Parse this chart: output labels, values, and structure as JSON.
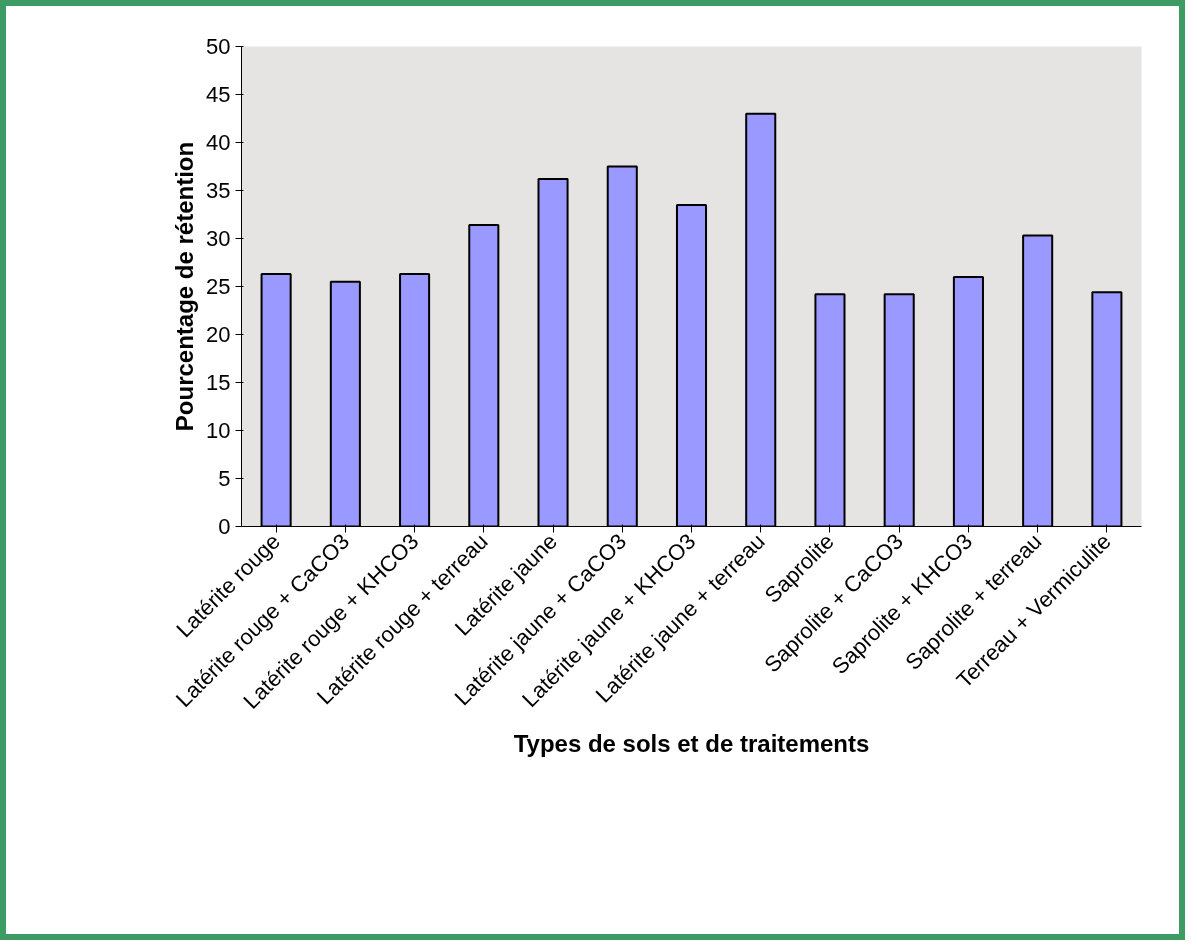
{
  "chart_data": {
    "type": "bar",
    "xlabel": "Types de sols et de traitements",
    "ylabel": "Pourcentage de rétention",
    "categories": [
      "Latérite rouge",
      "Latérite rouge + CaCO3",
      "Latérite rouge + KHCO3",
      "Latérite rouge + terreau",
      "Latérite jaune",
      "Latérite jaune + CaCO3",
      "Latérite jaune + KHCO3",
      "Latérite jaune + terreau",
      "Saprolite",
      "Saprolite + CaCO3",
      "Saprolite + KHCO3",
      "Saprolite + terreau",
      "Terreau + Vermiculite"
    ],
    "values": [
      26.3,
      25.5,
      26.3,
      31.4,
      36.2,
      37.5,
      33.5,
      43.0,
      24.2,
      24.2,
      26.0,
      30.3,
      24.4
    ],
    "color": "#9999ff",
    "ylim": [
      0,
      50
    ],
    "yticks": [
      0,
      5,
      10,
      15,
      20,
      25,
      30,
      35,
      40,
      45,
      50
    ]
  }
}
